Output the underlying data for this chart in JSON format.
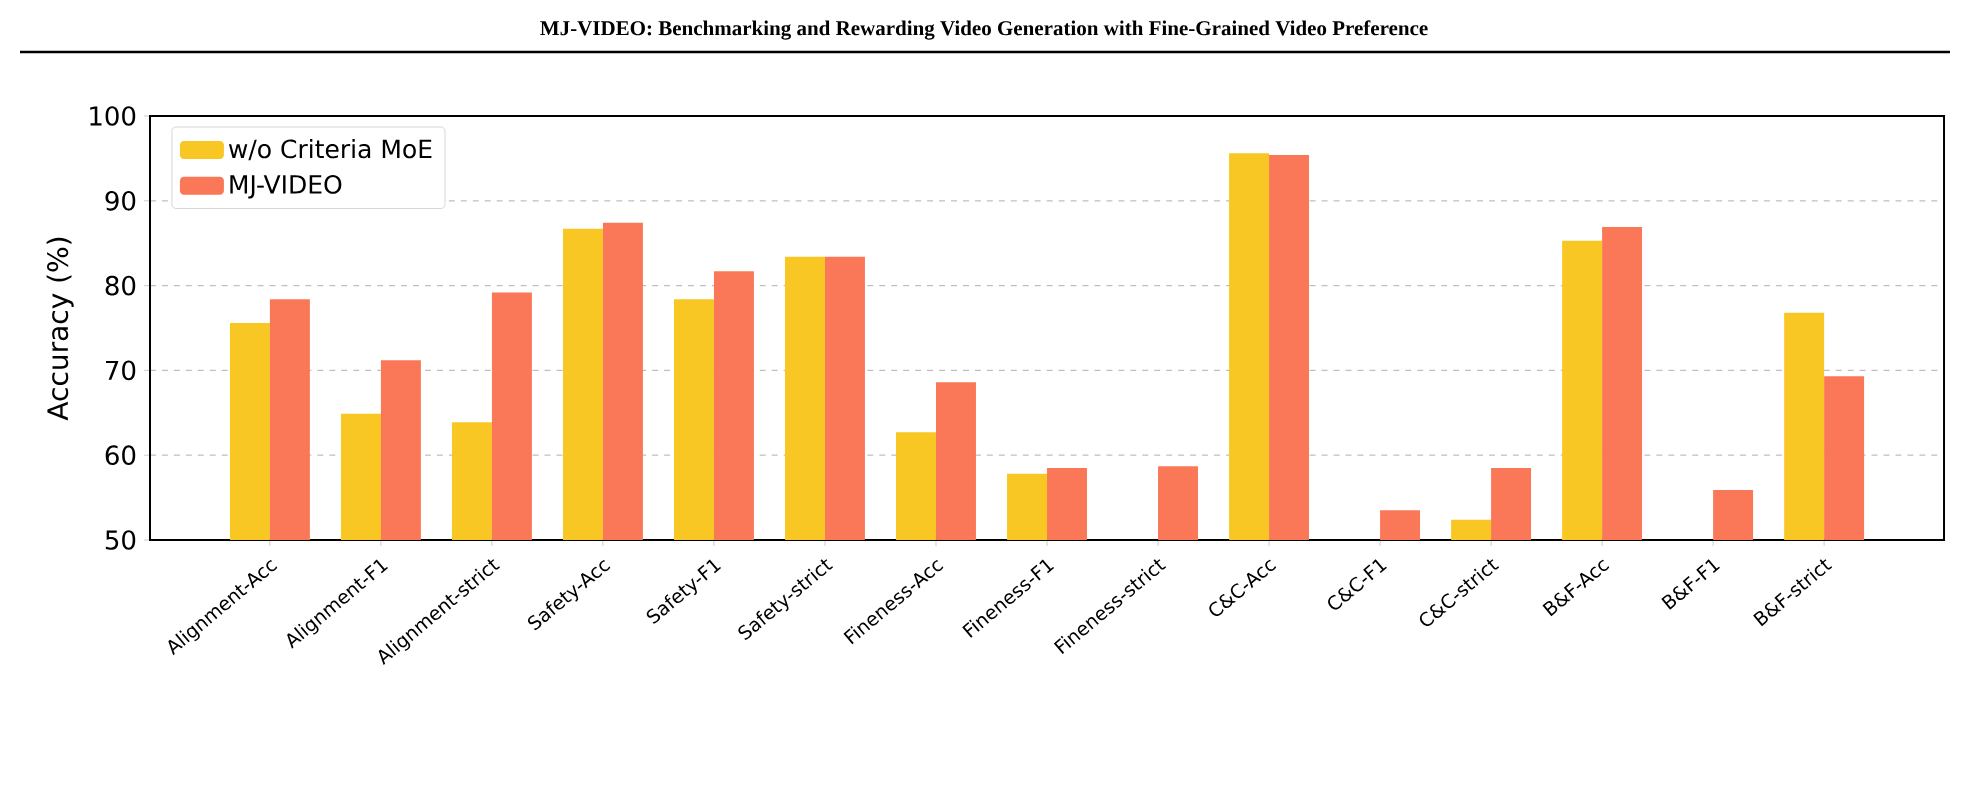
{
  "chart_data": {
    "type": "bar",
    "title": "MJ-VIDEO: Benchmarking and Rewarding Video Generation with Fine-Grained Video Preference",
    "ylabel": "Accuracy (%)",
    "categories": [
      "Alignment-Acc",
      "Alignment-F1",
      "Alignment-strict",
      "Safety-Acc",
      "Safety-F1",
      "Safety-strict",
      "Fineness-Acc",
      "Fineness-F1",
      "Fineness-strict",
      "C&C-Acc",
      "C&C-F1",
      "C&C-strict",
      "B&F-Acc",
      "B&F-F1",
      "B&F-strict"
    ],
    "series": [
      {
        "name": "w/o Criteria MoE",
        "color": "#f8c723",
        "values": [
          75.6,
          64.9,
          63.9,
          86.7,
          78.4,
          83.4,
          62.7,
          57.8,
          null,
          95.6,
          null,
          52.4,
          85.3,
          null,
          76.8
        ]
      },
      {
        "name": "MJ-VIDEO",
        "color": "#fa7857",
        "values": [
          78.4,
          71.2,
          79.2,
          87.4,
          81.7,
          83.4,
          68.6,
          58.5,
          58.7,
          95.4,
          53.5,
          58.5,
          86.9,
          55.9,
          69.3
        ]
      }
    ],
    "ylim": [
      50,
      100
    ],
    "yticks": [
      50,
      60,
      70,
      80,
      90,
      100
    ],
    "grid": "y",
    "legend": "top left"
  }
}
